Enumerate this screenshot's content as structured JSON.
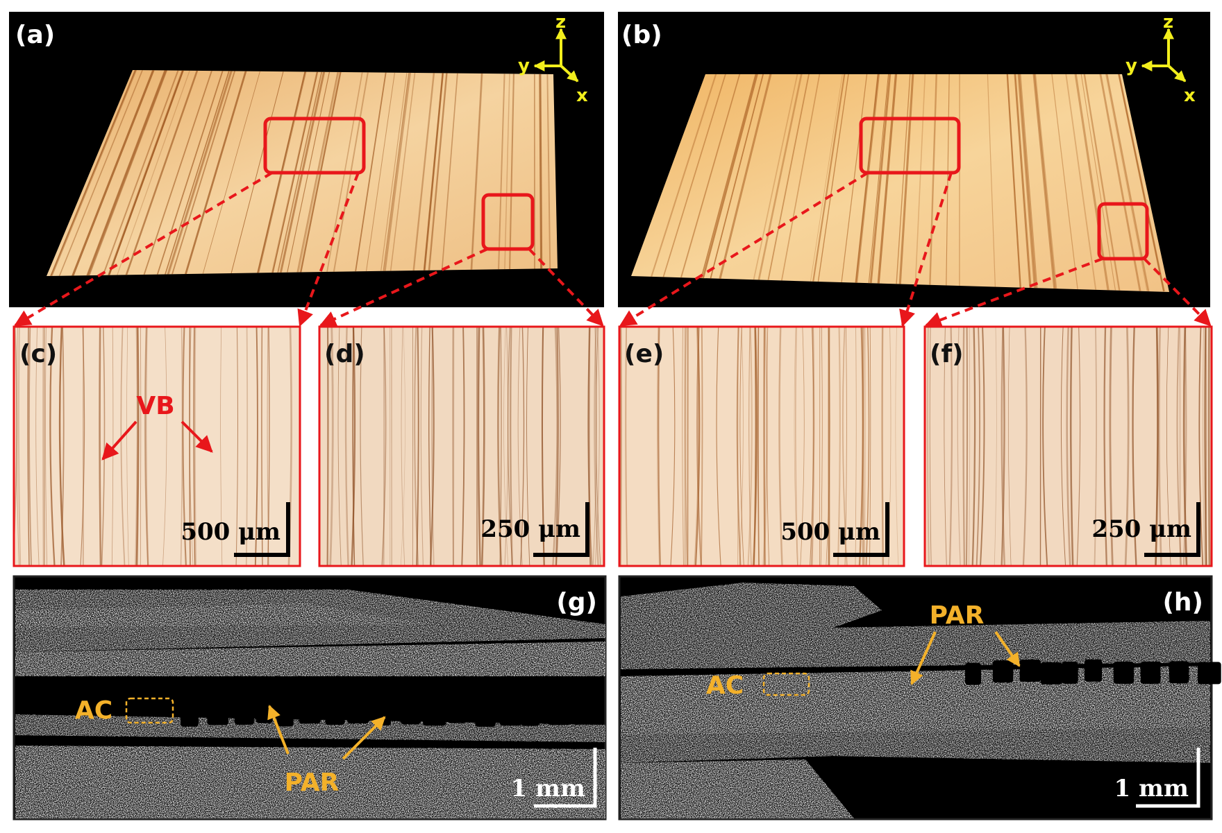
{
  "panels": [
    {
      "label": "(a)",
      "axes": [
        "z",
        "y",
        "x"
      ]
    },
    {
      "label": "(b)",
      "axes": [
        "z",
        "y",
        "x"
      ]
    },
    {
      "label": "(c)",
      "annotation": "VB",
      "scale_bar": "500 μm"
    },
    {
      "label": "(d)",
      "scale_bar": "250 μm"
    },
    {
      "label": "(e)",
      "scale_bar": "500 μm"
    },
    {
      "label": "(f)",
      "scale_bar": "250 μm"
    },
    {
      "label": "(g)",
      "annotations": {
        "ac": "AC",
        "par": "PAR"
      },
      "scale_bar": "1 mm"
    },
    {
      "label": "(h)",
      "annotations": {
        "ac": "AC",
        "par": "PAR"
      },
      "scale_bar": "1 mm"
    }
  ]
}
